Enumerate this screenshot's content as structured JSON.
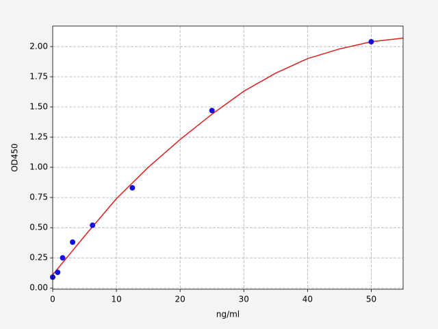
{
  "chart_data": {
    "type": "scatter",
    "xlabel": "ng/ml",
    "ylabel": "OD450",
    "xlim": [
      0,
      55
    ],
    "ylim": [
      -0.01,
      2.17
    ],
    "xticks": [
      0,
      10,
      20,
      30,
      40,
      50
    ],
    "yticks": [
      {
        "value": 0,
        "label": "0.00"
      },
      {
        "value": 0.25,
        "label": "0.25"
      },
      {
        "value": 0.5,
        "label": "0.50"
      },
      {
        "value": 0.75,
        "label": "0.75"
      },
      {
        "value": 1,
        "label": "1.00"
      },
      {
        "value": 1.25,
        "label": "1.25"
      },
      {
        "value": 1.5,
        "label": "1.50"
      },
      {
        "value": 1.75,
        "label": "1.75"
      },
      {
        "value": 2,
        "label": "2.00"
      }
    ],
    "grid": true,
    "series": [
      {
        "style": "line",
        "color": "#dd1c1c",
        "x": [
          0,
          5,
          10,
          15,
          20,
          25,
          30,
          35,
          40,
          45,
          50,
          55
        ],
        "values": [
          0.11,
          0.43,
          0.74,
          1.0,
          1.23,
          1.44,
          1.63,
          1.78,
          1.9,
          1.98,
          2.04,
          2.07
        ]
      },
      {
        "style": "markers",
        "color": "#1010dd",
        "x": [
          0,
          0.78,
          1.56,
          3.125,
          6.25,
          12.5,
          25,
          50
        ],
        "values": [
          0.09,
          0.13,
          0.25,
          0.38,
          0.52,
          0.83,
          1.47,
          2.04
        ]
      }
    ]
  }
}
